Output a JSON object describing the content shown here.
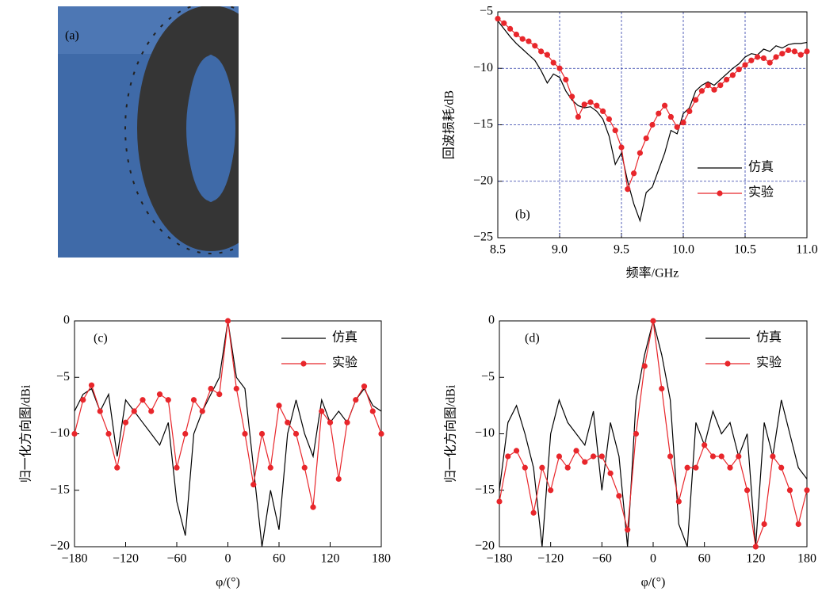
{
  "photo": {
    "label": "(a)"
  },
  "chart_data": [
    {
      "type": "line",
      "label": "(b)",
      "xlabel": "频率/GHz",
      "ylabel": "回波损耗/dB",
      "grid": true,
      "legend": "lower right",
      "xlim": [
        8.5,
        11.0
      ],
      "ylim": [
        -25,
        -5
      ],
      "xticks": [
        8.5,
        {
          "value": 9,
          "label": "9.0"
        },
        9.5,
        {
          "value": 10,
          "label": "10.0"
        },
        10.5,
        {
          "value": 11,
          "label": "11.0"
        }
      ],
      "yticks": [
        {
          "value": -5,
          "label": "−5"
        },
        {
          "value": -10,
          "label": "−10"
        },
        {
          "value": -15,
          "label": "−15"
        },
        {
          "value": -20,
          "label": "−20"
        },
        {
          "value": -25,
          "label": "−25"
        }
      ],
      "x": [
        8.5,
        8.55,
        8.6,
        8.65,
        8.7,
        8.75,
        8.8,
        8.85,
        8.9,
        8.95,
        9.0,
        9.05,
        9.1,
        9.15,
        9.2,
        9.25,
        9.3,
        9.35,
        9.4,
        9.45,
        9.5,
        9.55,
        9.6,
        9.65,
        9.7,
        9.75,
        9.8,
        9.85,
        9.9,
        9.95,
        10.0,
        10.05,
        10.1,
        10.15,
        10.2,
        10.25,
        10.3,
        10.35,
        10.4,
        10.45,
        10.5,
        10.55,
        10.6,
        10.65,
        10.7,
        10.75,
        10.8,
        10.85,
        10.9,
        10.95,
        11.0
      ],
      "series": [
        {
          "name": "仿真",
          "color": "#000000",
          "marker": "none",
          "values": [
            -5.8,
            -6.5,
            -7.2,
            -7.8,
            -8.3,
            -8.8,
            -9.3,
            -10.2,
            -11.3,
            -10.5,
            -10.8,
            -12.0,
            -12.8,
            -13.3,
            -13.5,
            -13.4,
            -13.8,
            -14.5,
            -16.0,
            -18.5,
            -17.5,
            -20.0,
            -22.0,
            -23.5,
            -21.0,
            -20.5,
            -19.0,
            -17.5,
            -15.5,
            -15.8,
            -14.0,
            -13.5,
            -12.0,
            -11.5,
            -11.2,
            -11.5,
            -11.0,
            -10.5,
            -10.0,
            -9.6,
            -9.0,
            -8.7,
            -8.8,
            -8.3,
            -8.5,
            -8.0,
            -8.2,
            -7.9,
            -7.8,
            -7.8,
            -7.7
          ]
        },
        {
          "name": "实验",
          "color": "#e8262b",
          "marker": "circle",
          "values": [
            -5.6,
            -6.0,
            -6.5,
            -7.0,
            -7.4,
            -7.6,
            -8.0,
            -8.5,
            -8.8,
            -9.5,
            -10.0,
            -11.0,
            -12.5,
            -14.3,
            -13.2,
            -13.0,
            -13.3,
            -13.8,
            -14.5,
            -15.5,
            -17.0,
            -20.7,
            -19.3,
            -17.5,
            -16.2,
            -15.0,
            -14.0,
            -13.3,
            -14.3,
            -15.2,
            -14.8,
            -13.8,
            -12.8,
            -12.0,
            -11.5,
            -11.9,
            -11.5,
            -11.0,
            -10.6,
            -10.1,
            -9.7,
            -9.3,
            -9.0,
            -9.1,
            -9.5,
            -9.0,
            -8.7,
            -8.4,
            -8.5,
            -8.8,
            -8.5
          ]
        }
      ]
    },
    {
      "type": "line",
      "label": "(c)",
      "xlabel": "φ/(°)",
      "ylabel": "归一化方向图/dBi",
      "grid": false,
      "legend": "upper right",
      "xlim": [
        -180,
        180
      ],
      "ylim": [
        -20,
        0
      ],
      "xticks": [
        {
          "value": -180,
          "label": "−180"
        },
        {
          "value": -120,
          "label": "−120"
        },
        {
          "value": -60,
          "label": "−60"
        },
        0,
        60,
        120,
        180
      ],
      "yticks": [
        0,
        {
          "value": -5,
          "label": "−5"
        },
        {
          "value": -10,
          "label": "−10"
        },
        {
          "value": -15,
          "label": "−15"
        },
        {
          "value": -20,
          "label": "−20"
        }
      ],
      "x": [
        -180,
        -170,
        -160,
        -150,
        -140,
        -130,
        -120,
        -110,
        -100,
        -90,
        -80,
        -70,
        -60,
        -50,
        -40,
        -30,
        -20,
        -10,
        0,
        10,
        20,
        30,
        40,
        50,
        60,
        70,
        80,
        90,
        100,
        110,
        120,
        130,
        140,
        150,
        160,
        170,
        180
      ],
      "series": [
        {
          "name": "仿真",
          "color": "#000000",
          "marker": "none",
          "values": [
            -8,
            -6.5,
            -6,
            -8,
            -6.5,
            -12,
            -7,
            -8,
            -9,
            -10,
            -11,
            -9,
            -16,
            -19,
            -10,
            -8,
            -6.5,
            -5,
            0,
            -5,
            -6,
            -13,
            -20,
            -15,
            -18.5,
            -10,
            -7,
            -10,
            -12,
            -7,
            -9,
            -8,
            -9,
            -7,
            -6,
            -7.5,
            -8
          ]
        },
        {
          "name": "实验",
          "color": "#e8262b",
          "marker": "circle",
          "values": [
            -10,
            -7,
            -5.7,
            -8,
            -10,
            -13,
            -9,
            -8,
            -7,
            -8,
            -6.5,
            -7,
            -13,
            -10,
            -7,
            -8,
            -6,
            -6.5,
            0,
            -6,
            -10,
            -14.5,
            -10,
            -13,
            -7.5,
            -9,
            -10,
            -13,
            -16.5,
            -8,
            -9,
            -14,
            -9,
            -7,
            -5.8,
            -8,
            -10
          ]
        }
      ]
    },
    {
      "type": "line",
      "label": "(d)",
      "xlabel": "φ/(°)",
      "ylabel": "归一化方向图/dBi",
      "grid": false,
      "legend": "upper right",
      "xlim": [
        -180,
        180
      ],
      "ylim": [
        -20,
        0
      ],
      "xticks": [
        {
          "value": -180,
          "label": "−180"
        },
        {
          "value": -120,
          "label": "−120"
        },
        {
          "value": -60,
          "label": "−60"
        },
        0,
        60,
        120,
        180
      ],
      "yticks": [
        0,
        {
          "value": -5,
          "label": "−5"
        },
        {
          "value": -10,
          "label": "−10"
        },
        {
          "value": -15,
          "label": "−15"
        },
        {
          "value": -20,
          "label": "−20"
        }
      ],
      "x": [
        -180,
        -170,
        -160,
        -150,
        -140,
        -130,
        -120,
        -110,
        -100,
        -90,
        -80,
        -70,
        -60,
        -50,
        -40,
        -30,
        -20,
        -10,
        0,
        10,
        20,
        30,
        40,
        50,
        60,
        70,
        80,
        90,
        100,
        110,
        120,
        130,
        140,
        150,
        160,
        170,
        180
      ],
      "series": [
        {
          "name": "仿真",
          "color": "#000000",
          "marker": "none",
          "values": [
            -15,
            -9,
            -7.5,
            -10,
            -13,
            -20,
            -10,
            -7,
            -9,
            -10,
            -11,
            -8,
            -15,
            -9,
            -12,
            -20,
            -7,
            -3,
            0,
            -3,
            -7,
            -18,
            -20,
            -9,
            -11,
            -8,
            -10,
            -9,
            -12,
            -10,
            -20,
            -9,
            -12,
            -7,
            -10,
            -13,
            -14
          ]
        },
        {
          "name": "实验",
          "color": "#e8262b",
          "marker": "circle",
          "values": [
            -16,
            -12,
            -11.5,
            -13,
            -17,
            -13,
            -15,
            -12,
            -13,
            -11.5,
            -12.5,
            -12,
            -12,
            -13.5,
            -15.5,
            -18.5,
            -10,
            -4,
            0,
            -6,
            -12,
            -16,
            -13,
            -13,
            -11,
            -12,
            -12,
            -13,
            -12,
            -15,
            -20,
            -18,
            -12,
            -13,
            -15,
            -18,
            -15
          ]
        }
      ]
    }
  ]
}
